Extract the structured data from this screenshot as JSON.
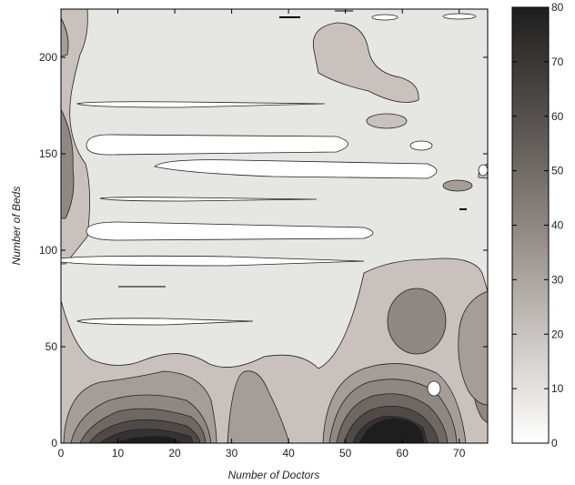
{
  "chart_data": {
    "type": "heatmap",
    "subtype": "filled-contour",
    "xlabel": "Number of Doctors",
    "ylabel": "Number of Beds",
    "xlim": [
      0,
      75
    ],
    "ylim": [
      0,
      225
    ],
    "x_ticks": [
      0,
      10,
      20,
      30,
      40,
      50,
      60,
      70
    ],
    "y_ticks": [
      0,
      50,
      100,
      150,
      200
    ],
    "colorbar": {
      "range": [
        0,
        80
      ],
      "ticks": [
        0,
        10,
        20,
        30,
        40,
        50,
        60,
        70,
        80
      ],
      "colormap": "gray-reversed",
      "color_low": "#ffffff",
      "color_high": "#1e1e1e"
    },
    "contour_levels": [
      5,
      10,
      20,
      30,
      40,
      50,
      60,
      70
    ],
    "grid": false,
    "features": [
      {
        "label": "dark peak",
        "x": 16,
        "y": 0,
        "value": 70
      },
      {
        "label": "dark peak",
        "x": 57,
        "y": 0,
        "value": 75
      },
      {
        "label": "mid-gray island",
        "x": 61,
        "y": 65,
        "value": 25
      },
      {
        "label": "light-gray island",
        "x": 45,
        "y": 205,
        "value": 20
      },
      {
        "label": "left edge ridge",
        "x": 0,
        "y": 150,
        "value": 25
      },
      {
        "label": "white band",
        "x": 20,
        "y": 155,
        "value": 2
      },
      {
        "label": "white band",
        "x": 40,
        "y": 145,
        "value": 2
      },
      {
        "label": "white band",
        "x": 20,
        "y": 110,
        "value": 2
      },
      {
        "label": "white band",
        "x": 15,
        "y": 93,
        "value": 2
      },
      {
        "label": "white band",
        "x": 10,
        "y": 63,
        "value": 2
      }
    ]
  }
}
